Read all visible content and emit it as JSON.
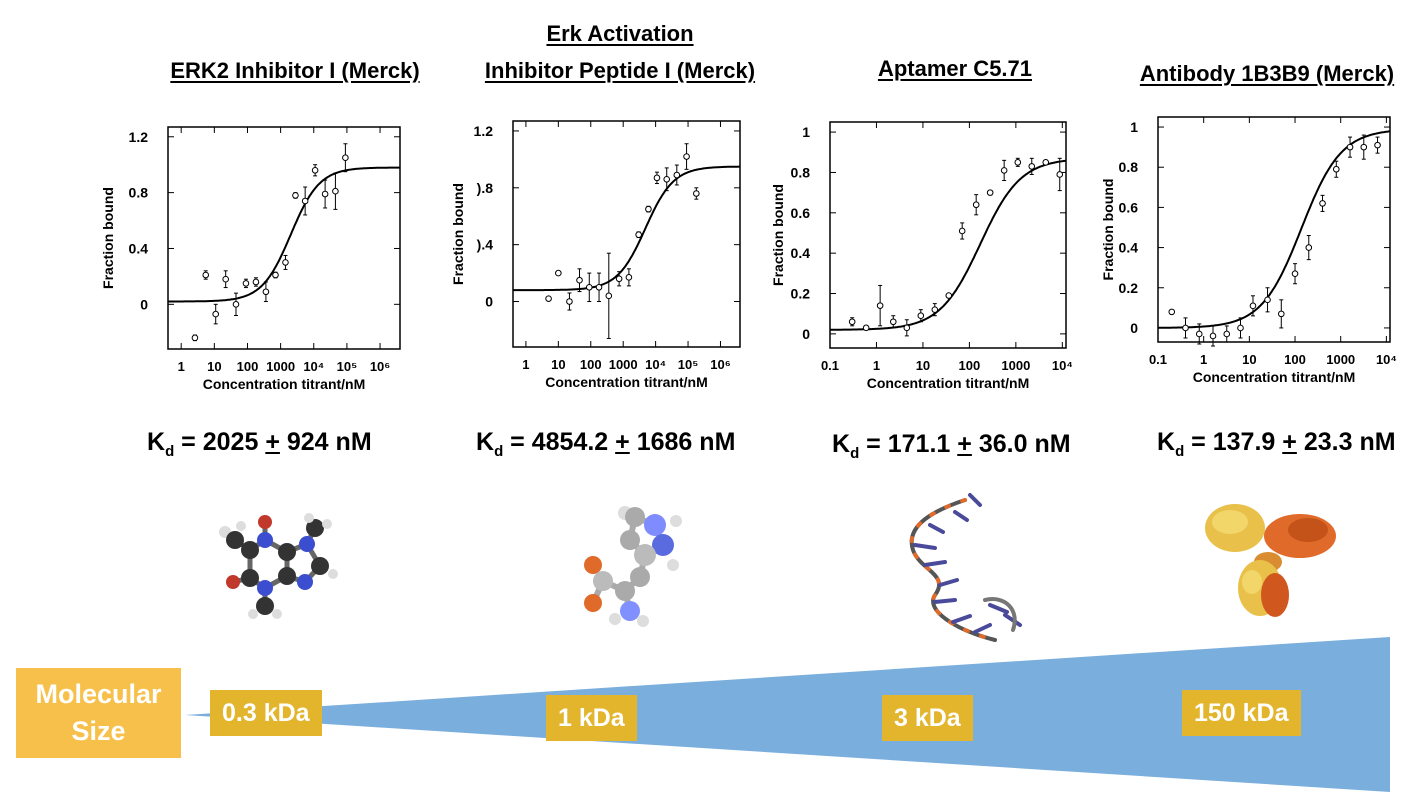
{
  "titles": {
    "t1": "ERK2 Inhibitor I (Merck)",
    "t2a": "Erk Activation",
    "t2b": "Inhibitor Peptide I (Merck)",
    "t3": "Aptamer C5.71",
    "t4": "Antibody 1B3B9 (Merck)"
  },
  "kd": [
    {
      "value": "2025",
      "err": "924",
      "unit": "nM"
    },
    {
      "value": "4854.2",
      "err": "1686",
      "unit": "nM"
    },
    {
      "value": "171.1",
      "err": "36.0",
      "unit": "nM"
    },
    {
      "value": "137.9",
      "err": "23.3",
      "unit": "nM"
    }
  ],
  "size_scale": {
    "label": "Molecular Size",
    "sizes": [
      "0.3 kDa",
      "1 kDa",
      "3 kDa",
      "150 kDa"
    ],
    "colors": {
      "label_bg": "#f6c04a",
      "box_bg": "#e2b52d",
      "wedge": "#7aaedc"
    }
  },
  "molecule_icons": [
    "small-molecule-ball-and-stick-icon",
    "peptide-ball-and-stick-icon",
    "dna-aptamer-stick-icon",
    "antibody-surface-icon"
  ],
  "chart_data": [
    {
      "type": "scatter",
      "xlabel": "Concentration titrant/nM",
      "ylabel": "Fraction bound",
      "xscale": "log",
      "xlim": [
        0.4,
        4000000
      ],
      "ylim": [
        -0.32,
        1.27
      ],
      "xticks": [
        1,
        10,
        100,
        1000,
        10000,
        100000,
        1000000
      ],
      "xtick_labels": [
        "1",
        "10",
        "100",
        "1000",
        "10⁴",
        "10⁵",
        "10⁶"
      ],
      "yticks": [
        0,
        0.4,
        0.8,
        1.2
      ],
      "ytick_labels": [
        "0",
        "0.4",
        "0.8",
        "1.2"
      ],
      "fit": {
        "bottom": 0.02,
        "top": 0.98,
        "kd": 2025
      },
      "points": [
        {
          "x": 2.6,
          "y": -0.24,
          "e": 0.02
        },
        {
          "x": 5.5,
          "y": 0.21,
          "e": 0.03
        },
        {
          "x": 11,
          "y": -0.07,
          "e": 0.07
        },
        {
          "x": 22,
          "y": 0.18,
          "e": 0.06
        },
        {
          "x": 45,
          "y": 0.0,
          "e": 0.08
        },
        {
          "x": 90,
          "y": 0.15,
          "e": 0.03
        },
        {
          "x": 180,
          "y": 0.16,
          "e": 0.03
        },
        {
          "x": 360,
          "y": 0.09,
          "e": 0.07
        },
        {
          "x": 700,
          "y": 0.21,
          "e": 0.02
        },
        {
          "x": 1400,
          "y": 0.3,
          "e": 0.05
        },
        {
          "x": 2800,
          "y": 0.78,
          "e": 0.02
        },
        {
          "x": 5500,
          "y": 0.74,
          "e": 0.1
        },
        {
          "x": 11000,
          "y": 0.96,
          "e": 0.04
        },
        {
          "x": 22000,
          "y": 0.79,
          "e": 0.1
        },
        {
          "x": 45000,
          "y": 0.81,
          "e": 0.13
        },
        {
          "x": 90000,
          "y": 1.05,
          "e": 0.1
        }
      ]
    },
    {
      "type": "scatter",
      "xlabel": "Concentration titrant/nM",
      "ylabel": "Fraction bound",
      "xscale": "log",
      "xlim": [
        0.4,
        4000000
      ],
      "ylim": [
        -0.32,
        1.27
      ],
      "xticks": [
        1,
        10,
        100,
        1000,
        10000,
        100000,
        1000000
      ],
      "xtick_labels": [
        "1",
        "10",
        "100",
        "1000",
        "10⁴",
        "10⁵",
        "10⁶"
      ],
      "yticks": [
        0,
        0.4,
        0.8,
        1.2
      ],
      "ytick_labels": [
        "0",
        ").4",
        ").8",
        "1.2"
      ],
      "fit": {
        "bottom": 0.08,
        "top": 0.95,
        "kd": 4854
      },
      "points": [
        {
          "x": 5,
          "y": 0.02,
          "e": 0.0
        },
        {
          "x": 10,
          "y": 0.2,
          "e": 0.0
        },
        {
          "x": 22,
          "y": 0.0,
          "e": 0.06
        },
        {
          "x": 45,
          "y": 0.15,
          "e": 0.08
        },
        {
          "x": 90,
          "y": 0.1,
          "e": 0.1
        },
        {
          "x": 180,
          "y": 0.1,
          "e": 0.1
        },
        {
          "x": 360,
          "y": 0.04,
          "e": 0.3
        },
        {
          "x": 750,
          "y": 0.16,
          "e": 0.05
        },
        {
          "x": 1500,
          "y": 0.17,
          "e": 0.06
        },
        {
          "x": 3000,
          "y": 0.47,
          "e": 0.02
        },
        {
          "x": 6000,
          "y": 0.65,
          "e": 0.02
        },
        {
          "x": 11000,
          "y": 0.87,
          "e": 0.04
        },
        {
          "x": 22000,
          "y": 0.86,
          "e": 0.08
        },
        {
          "x": 45000,
          "y": 0.89,
          "e": 0.07
        },
        {
          "x": 90000,
          "y": 1.02,
          "e": 0.09
        },
        {
          "x": 180000,
          "y": 0.76,
          "e": 0.04
        }
      ]
    },
    {
      "type": "scatter",
      "xlabel": "Concentration titrant/nM",
      "ylabel": "Fraction bound",
      "xscale": "log",
      "xlim": [
        0.1,
        12000
      ],
      "ylim": [
        -0.07,
        1.05
      ],
      "xticks": [
        0.1,
        1,
        10,
        100,
        1000,
        10000
      ],
      "xtick_labels": [
        "0.1",
        "1",
        "10",
        "100",
        "1000",
        "10⁴"
      ],
      "yticks": [
        0,
        0.2,
        0.4,
        0.6,
        0.8,
        1
      ],
      "ytick_labels": [
        "0",
        "0.2",
        "0.4",
        "0.6",
        "0.8",
        "1"
      ],
      "fit": {
        "bottom": 0.02,
        "top": 0.87,
        "kd": 171.1
      },
      "points": [
        {
          "x": 0.3,
          "y": 0.06,
          "e": 0.02
        },
        {
          "x": 0.6,
          "y": 0.03,
          "e": 0.01
        },
        {
          "x": 1.2,
          "y": 0.14,
          "e": 0.1
        },
        {
          "x": 2.3,
          "y": 0.06,
          "e": 0.03
        },
        {
          "x": 4.5,
          "y": 0.03,
          "e": 0.04
        },
        {
          "x": 9,
          "y": 0.09,
          "e": 0.03
        },
        {
          "x": 18,
          "y": 0.12,
          "e": 0.03
        },
        {
          "x": 36,
          "y": 0.19,
          "e": 0.01
        },
        {
          "x": 70,
          "y": 0.51,
          "e": 0.04
        },
        {
          "x": 140,
          "y": 0.64,
          "e": 0.05
        },
        {
          "x": 280,
          "y": 0.7,
          "e": 0.01
        },
        {
          "x": 560,
          "y": 0.81,
          "e": 0.05
        },
        {
          "x": 1100,
          "y": 0.85,
          "e": 0.02
        },
        {
          "x": 2200,
          "y": 0.83,
          "e": 0.04
        },
        {
          "x": 4400,
          "y": 0.85,
          "e": 0.01
        },
        {
          "x": 8800,
          "y": 0.79,
          "e": 0.08
        }
      ]
    },
    {
      "type": "scatter",
      "xlabel": "Concentration titrant/nM",
      "ylabel": "Fraction bound",
      "xscale": "log",
      "xlim": [
        0.1,
        12000
      ],
      "ylim": [
        -0.07,
        1.05
      ],
      "xticks": [
        0.1,
        1,
        10,
        100,
        1000,
        10000
      ],
      "xtick_labels": [
        "0.1",
        "1",
        "10",
        "100",
        "1000",
        "10⁴"
      ],
      "yticks": [
        0,
        0.2,
        0.4,
        0.6,
        0.8,
        1
      ],
      "ytick_labels": [
        "0",
        "0.2",
        "0.4",
        "0.6",
        "0.8",
        "1"
      ],
      "fit": {
        "bottom": 0.0,
        "top": 0.99,
        "kd": 137.9
      },
      "points": [
        {
          "x": 0.2,
          "y": 0.08,
          "e": 0.0
        },
        {
          "x": 0.4,
          "y": 0.0,
          "e": 0.05
        },
        {
          "x": 0.8,
          "y": -0.03,
          "e": 0.05
        },
        {
          "x": 1.6,
          "y": -0.04,
          "e": 0.05
        },
        {
          "x": 3.2,
          "y": -0.03,
          "e": 0.04
        },
        {
          "x": 6.4,
          "y": 0.0,
          "e": 0.05
        },
        {
          "x": 12,
          "y": 0.11,
          "e": 0.05
        },
        {
          "x": 25,
          "y": 0.14,
          "e": 0.06
        },
        {
          "x": 50,
          "y": 0.07,
          "e": 0.07
        },
        {
          "x": 100,
          "y": 0.27,
          "e": 0.05
        },
        {
          "x": 200,
          "y": 0.4,
          "e": 0.06
        },
        {
          "x": 400,
          "y": 0.62,
          "e": 0.04
        },
        {
          "x": 800,
          "y": 0.79,
          "e": 0.04
        },
        {
          "x": 1600,
          "y": 0.9,
          "e": 0.05
        },
        {
          "x": 3200,
          "y": 0.9,
          "e": 0.06
        },
        {
          "x": 6400,
          "y": 0.91,
          "e": 0.04
        }
      ]
    }
  ]
}
